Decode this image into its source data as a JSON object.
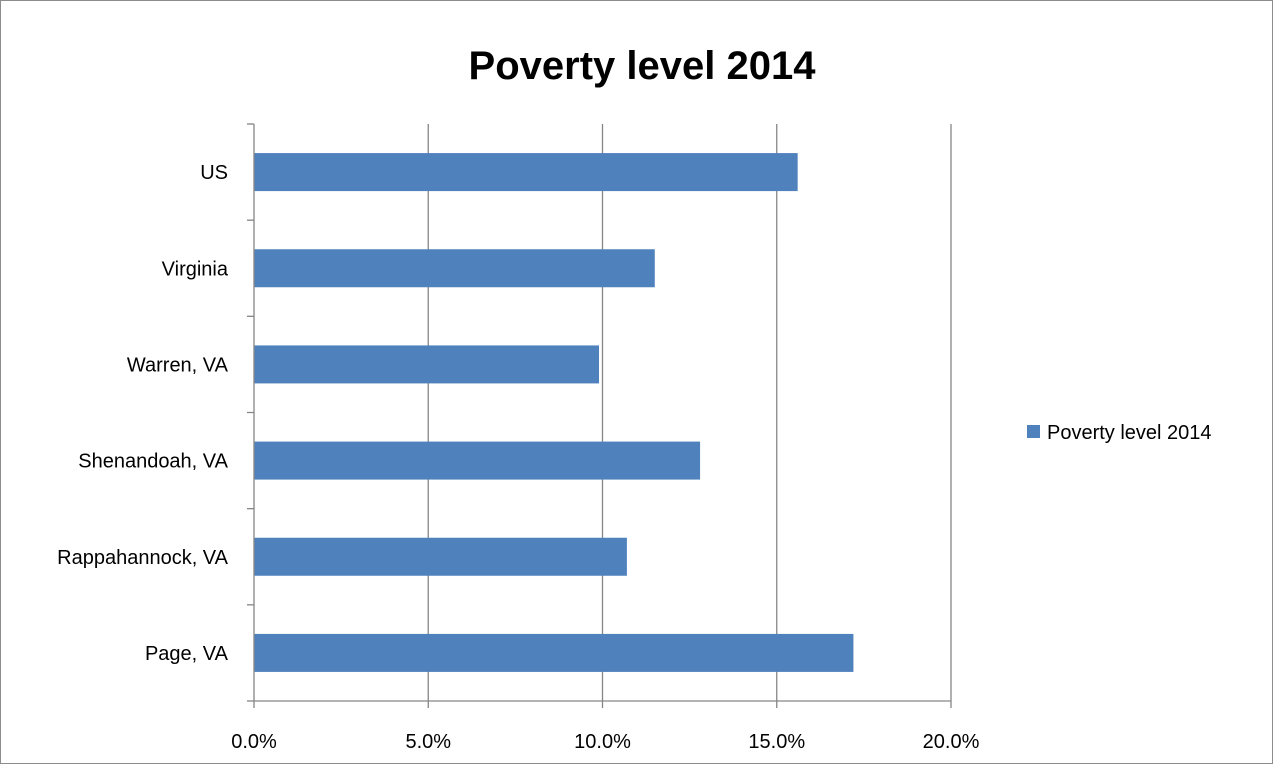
{
  "chart_data": {
    "type": "bar",
    "orientation": "horizontal",
    "title": "Poverty level 2014",
    "categories": [
      "US",
      "Virginia",
      "Warren, VA",
      "Shenandoah, VA",
      "Rappahannock, VA",
      "Page, VA"
    ],
    "series": [
      {
        "name": "Poverty level 2014",
        "values": [
          0.156,
          0.115,
          0.099,
          0.128,
          0.107,
          0.172
        ],
        "color": "#4f81bd"
      }
    ],
    "xlim": [
      0,
      0.2
    ],
    "x_ticks": [
      0,
      0.05,
      0.1,
      0.15,
      0.2
    ],
    "x_tick_labels": [
      "0.0%",
      "5.0%",
      "10.0%",
      "15.0%",
      "20.0%"
    ],
    "xlabel": "",
    "ylabel": "",
    "grid": "vertical major gridlines",
    "legend_position": "right"
  }
}
